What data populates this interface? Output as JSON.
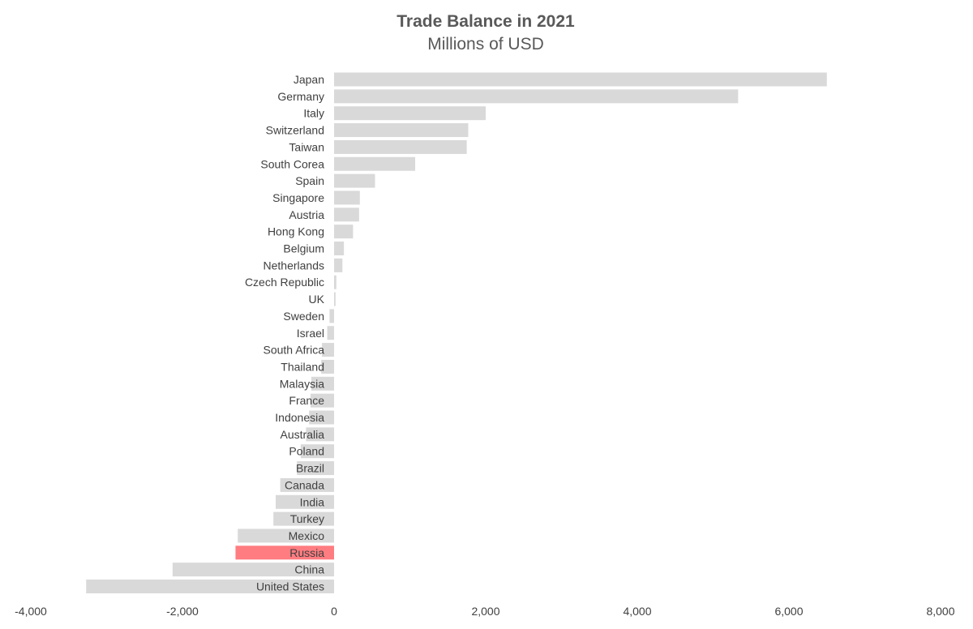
{
  "chart_data": {
    "type": "bar",
    "orientation": "horizontal",
    "title": "Trade Balance in 2021",
    "subtitle": "Millions of USD",
    "xlabel": "",
    "ylabel": "",
    "categories": [
      "Japan",
      "Germany",
      "Italy",
      "Switzerland",
      "Taiwan",
      "South Corea",
      "Spain",
      "Singapore",
      "Austria",
      "Hong Kong",
      "Belgium",
      "Netherlands",
      "Czech Republic",
      "UK",
      "Sweden",
      "Israel",
      "South Africa",
      "Thailand",
      "Malaysia",
      "France",
      "Indonesia",
      "Australia",
      "Poland",
      "Brazil",
      "Canada",
      "India",
      "Turkey",
      "Mexico",
      "Russia",
      "China",
      "United States"
    ],
    "values": [
      6500,
      5330,
      2000,
      1770,
      1750,
      1070,
      540,
      340,
      330,
      250,
      130,
      110,
      30,
      20,
      -60,
      -90,
      -160,
      -170,
      -300,
      -310,
      -330,
      -370,
      -440,
      -490,
      -710,
      -770,
      -800,
      -1270,
      -1300,
      -2130,
      -3270
    ],
    "highlight_category": "Russia",
    "colors": {
      "bar": "#d9d9d9",
      "highlight": "#ff7c80",
      "text": "#595959",
      "label": "#404040"
    },
    "xlim": [
      -4000,
      8000
    ],
    "xticks": [
      -4000,
      -2000,
      0,
      2000,
      4000,
      6000,
      8000
    ],
    "xtick_labels": [
      "-4,000",
      "-2,000",
      "0",
      "2,000",
      "4,000",
      "6,000",
      "8,000"
    ],
    "grid": false,
    "legend": "none"
  }
}
